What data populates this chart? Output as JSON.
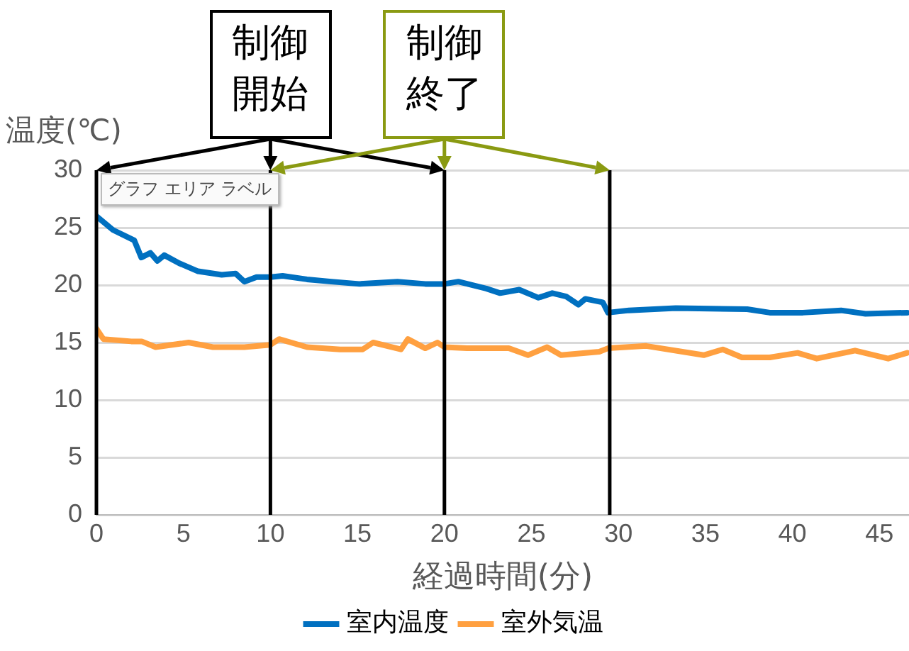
{
  "chart_data": {
    "type": "line",
    "xlabel": "経過時間(分)",
    "ylabel": "温度(℃)",
    "xlim": [
      0,
      46.7
    ],
    "xticks": [
      0,
      5,
      10,
      15,
      20,
      25,
      30,
      35,
      40,
      45
    ],
    "ylim": [
      0,
      30
    ],
    "yticks": [
      0,
      5,
      10,
      15,
      20,
      25,
      30
    ],
    "grid": "y",
    "legend": "bottom",
    "marker": "none",
    "line_style": "solid",
    "series": [
      {
        "name": "室内温度",
        "color": "#0070c0",
        "x": [
          0,
          0.95,
          2.17,
          2.58,
          3.1,
          3.5,
          3.9,
          4.76,
          5.84,
          7.2,
          8.0,
          8.5,
          9.2,
          10,
          10.7,
          12.1,
          13.5,
          15.1,
          17.3,
          18.9,
          20,
          20.8,
          22.4,
          23.2,
          24.3,
          25.4,
          26.2,
          27.0,
          27.7,
          28.1,
          29.1,
          29.4,
          30.6,
          33.3,
          37.4,
          38.7,
          40.6,
          42.8,
          44.2,
          46.6
        ],
        "values": [
          26.0,
          24.8,
          23.9,
          22.4,
          22.8,
          22.1,
          22.6,
          21.9,
          21.2,
          20.9,
          21.0,
          20.3,
          20.7,
          20.7,
          20.8,
          20.5,
          20.3,
          20.1,
          20.3,
          20.1,
          20.1,
          20.3,
          19.7,
          19.3,
          19.6,
          18.9,
          19.3,
          19.0,
          18.3,
          18.8,
          18.5,
          17.6,
          17.8,
          18.0,
          17.9,
          17.6,
          17.6,
          17.8,
          17.5,
          17.6
        ]
      },
      {
        "name": "室外気温",
        "color": "#ffa040",
        "x": [
          0,
          0.4,
          2.0,
          2.6,
          3.4,
          5.3,
          6.7,
          8.5,
          10,
          10.5,
          12.1,
          14.0,
          15.3,
          15.9,
          17.5,
          17.9,
          18.9,
          19.6,
          20.0,
          21.3,
          23.7,
          24.8,
          25.9,
          26.7,
          28.9,
          29.4,
          31.6,
          34.9,
          36.0,
          37.1,
          38.7,
          40.3,
          41.4,
          43.6,
          45.5,
          46.6
        ],
        "values": [
          16.2,
          15.3,
          15.1,
          15.1,
          14.6,
          15.0,
          14.6,
          14.6,
          14.8,
          15.3,
          14.6,
          14.4,
          14.4,
          15.0,
          14.4,
          15.3,
          14.5,
          15.0,
          14.6,
          14.5,
          14.5,
          13.9,
          14.6,
          13.9,
          14.2,
          14.5,
          14.7,
          13.9,
          14.4,
          13.7,
          13.7,
          14.1,
          13.6,
          14.3,
          13.6,
          14.1
        ]
      }
    ],
    "ref_lines": [
      {
        "axis": "x",
        "value": 0,
        "color": "#000000"
      },
      {
        "axis": "x",
        "value": 10,
        "color": "#000000"
      },
      {
        "axis": "x",
        "value": 20,
        "color": "#000000"
      },
      {
        "axis": "x",
        "value": 29.5,
        "color": "#000000"
      }
    ],
    "annotations": [
      "制御開始",
      "制御終了",
      "グラフ エリア ラベル"
    ]
  }
}
